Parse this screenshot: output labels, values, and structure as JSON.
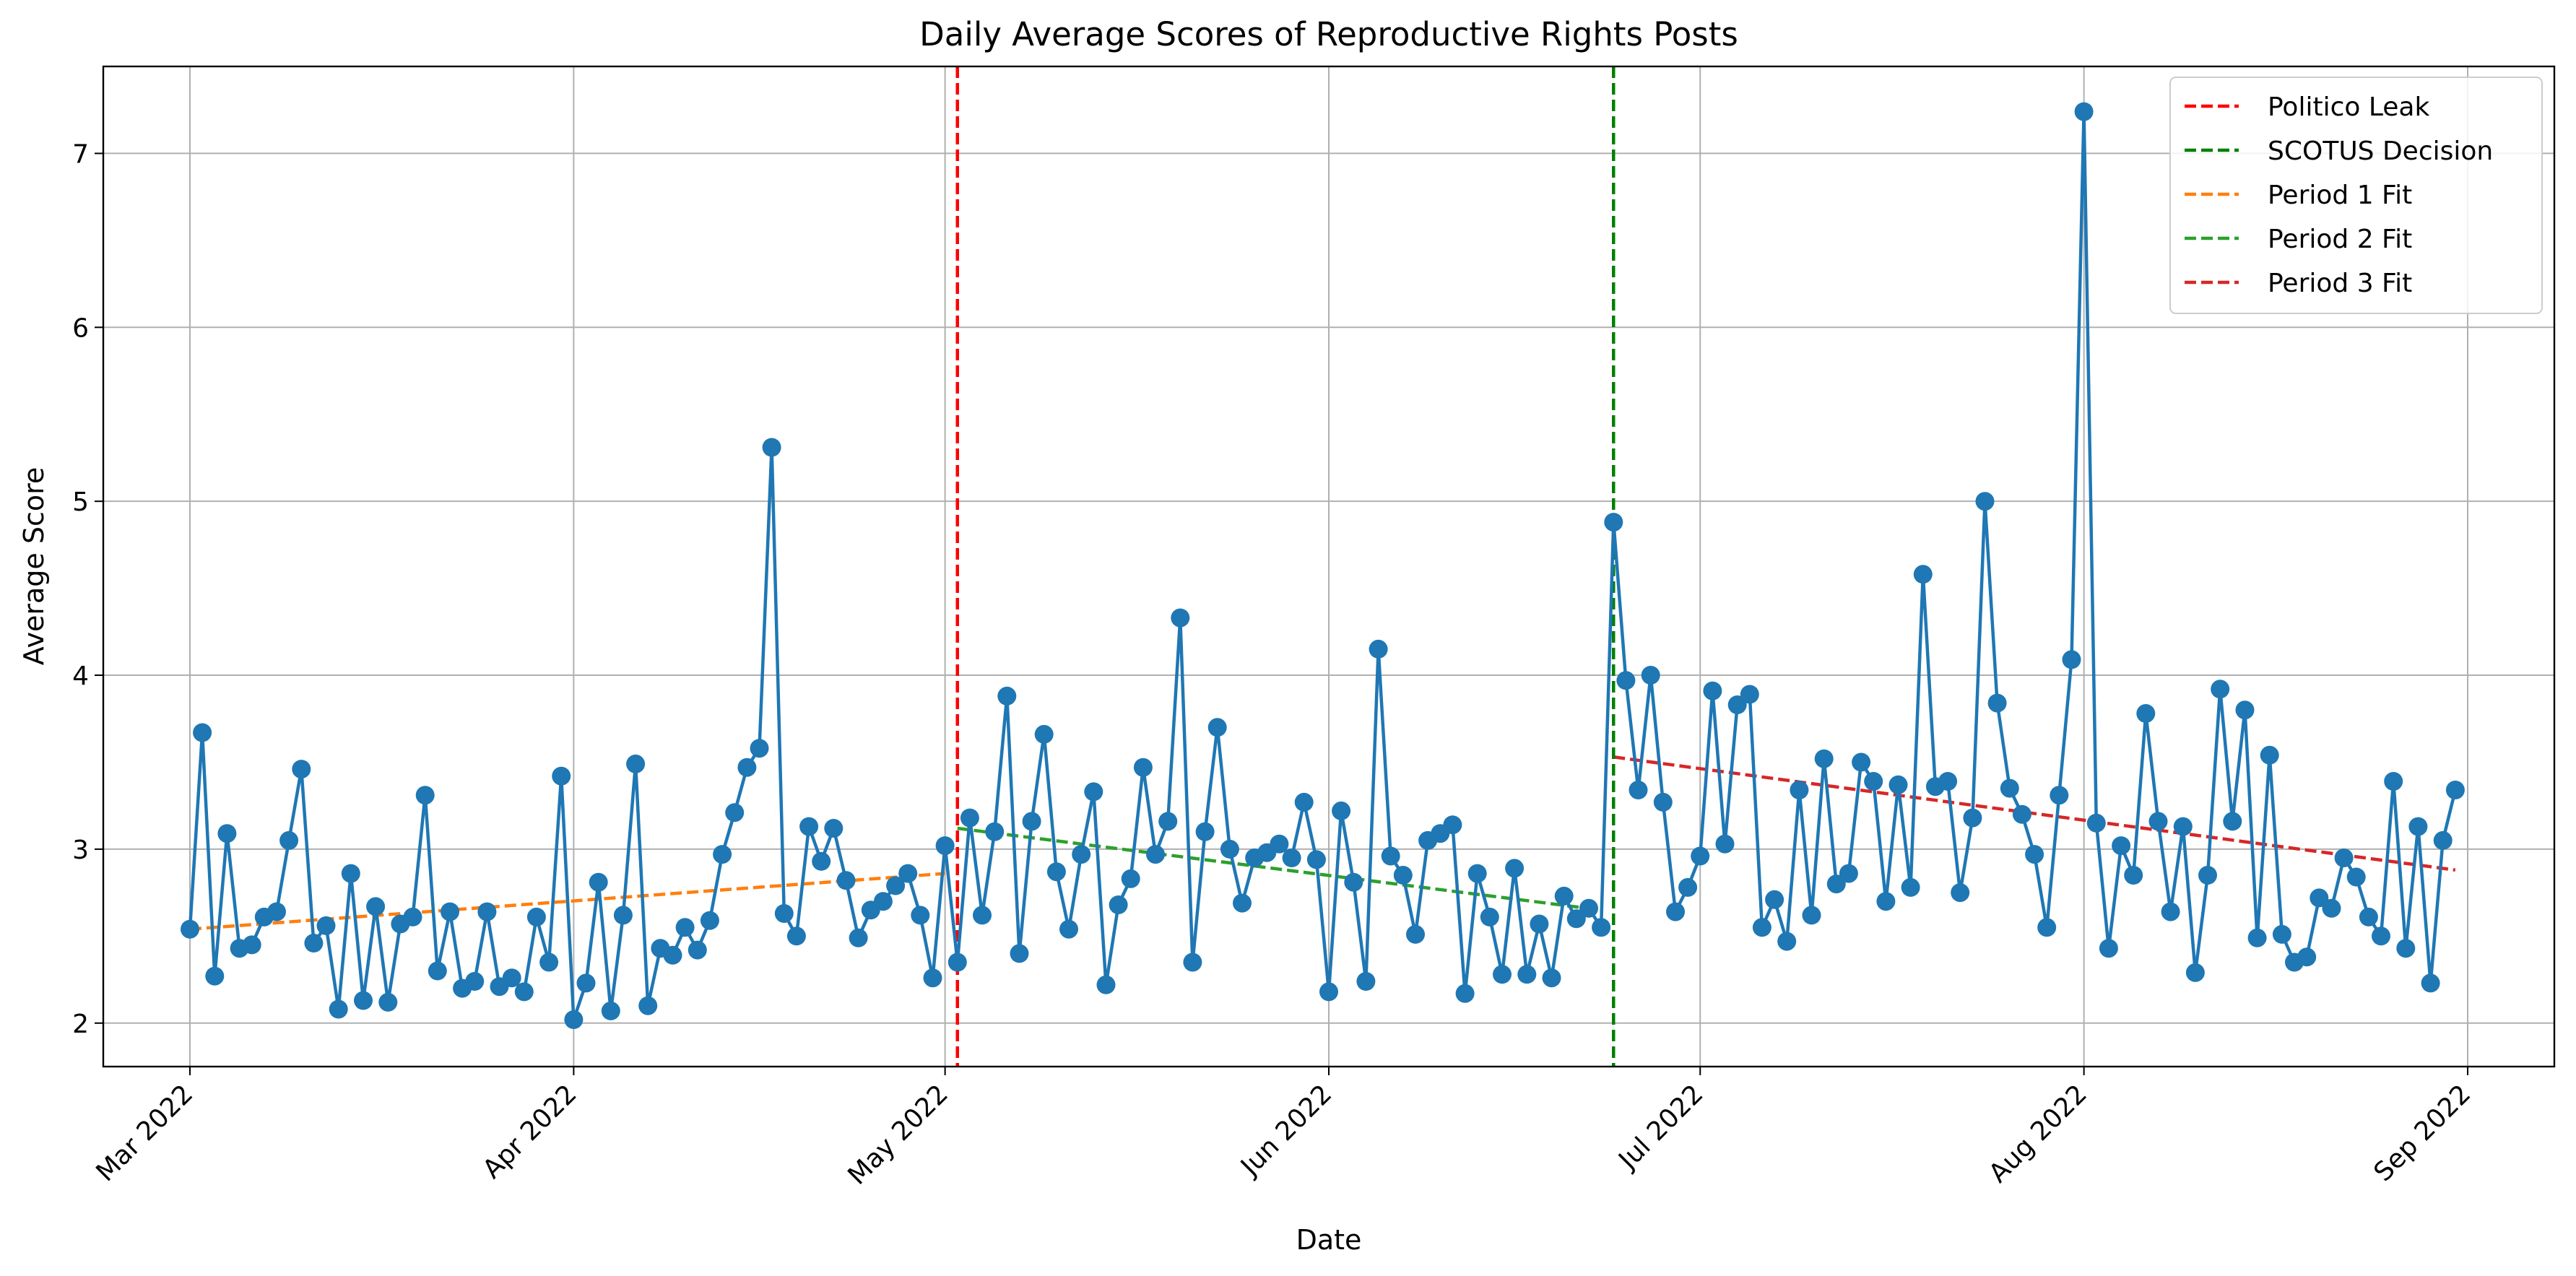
{
  "chart_data": {
    "type": "line",
    "title": "Daily Average Scores of Reproductive Rights Posts",
    "xlabel": "Date",
    "ylabel": "Average Score",
    "xlim": [
      "2022-02-22",
      "2022-09-08"
    ],
    "ylim": [
      1.75,
      7.5
    ],
    "x_ticks": [
      {
        "date": "2022-03-01",
        "label": "Mar 2022"
      },
      {
        "date": "2022-04-01",
        "label": "Apr 2022"
      },
      {
        "date": "2022-05-01",
        "label": "May 2022"
      },
      {
        "date": "2022-06-01",
        "label": "Jun 2022"
      },
      {
        "date": "2022-07-01",
        "label": "Jul 2022"
      },
      {
        "date": "2022-08-01",
        "label": "Aug 2022"
      },
      {
        "date": "2022-09-01",
        "label": "Sep 2022"
      }
    ],
    "y_ticks": [
      2,
      3,
      4,
      5,
      6,
      7
    ],
    "grid": true,
    "legend_position": "top-right",
    "series": [
      {
        "color": "#1f77b4",
        "start_date": "2022-03-01",
        "values": [
          2.54,
          3.67,
          2.27,
          3.09,
          2.43,
          2.45,
          2.61,
          2.64,
          3.05,
          3.46,
          2.46,
          2.56,
          2.08,
          2.86,
          2.13,
          2.67,
          2.12,
          2.57,
          2.61,
          3.31,
          2.3,
          2.64,
          2.2,
          2.24,
          2.64,
          2.21,
          2.26,
          2.18,
          2.61,
          2.35,
          3.42,
          2.02,
          2.23,
          2.81,
          2.07,
          2.62,
          3.49,
          2.1,
          2.43,
          2.39,
          2.55,
          2.42,
          2.59,
          2.97,
          3.21,
          3.47,
          3.58,
          5.31,
          2.63,
          2.5,
          3.13,
          2.93,
          3.12,
          2.82,
          2.49,
          2.65,
          2.7,
          2.79,
          2.86,
          2.62,
          2.26,
          3.02,
          2.35,
          3.18,
          2.62,
          3.1,
          3.88,
          2.4,
          3.16,
          3.66,
          2.87,
          2.54,
          2.97,
          3.33,
          2.22,
          2.68,
          2.83,
          3.47,
          2.97,
          3.16,
          4.33,
          2.35,
          3.1,
          3.7,
          3.0,
          2.69,
          2.95,
          2.98,
          3.03,
          2.95,
          3.27,
          2.94,
          2.18,
          3.22,
          2.81,
          2.24,
          4.15,
          2.96,
          2.85,
          2.51,
          3.05,
          3.09,
          3.14,
          2.17,
          2.86,
          2.61,
          2.28,
          2.89,
          2.28,
          2.57,
          2.26,
          2.73,
          2.6,
          2.66,
          2.55,
          4.88,
          3.97,
          3.34,
          4.0,
          3.27,
          2.64,
          2.78,
          2.96,
          3.91,
          3.03,
          3.83,
          3.89,
          2.55,
          2.71,
          2.47,
          3.34,
          2.62,
          3.52,
          2.8,
          2.86,
          3.5,
          3.39,
          2.7,
          3.37,
          2.78,
          4.58,
          3.36,
          3.39,
          2.75,
          3.18,
          5.0,
          3.84,
          3.35,
          3.2,
          2.97,
          2.55,
          3.31,
          4.09,
          7.24,
          3.15,
          2.43,
          3.02,
          2.85,
          3.78,
          3.16,
          2.64,
          3.13,
          2.29,
          2.85,
          3.92,
          3.16,
          3.8,
          2.49,
          3.54,
          2.51,
          2.35,
          2.38,
          2.72,
          2.66,
          2.95,
          2.84,
          2.61,
          2.5,
          3.39,
          2.43,
          3.13,
          2.23,
          3.05,
          3.34
        ]
      }
    ],
    "vlines": [
      {
        "name": "Politico Leak",
        "date": "2022-05-02",
        "color": "#ff0000"
      },
      {
        "name": "SCOTUS Decision",
        "date": "2022-06-24",
        "color": "#008000"
      }
    ],
    "fits": [
      {
        "name": "Period 1 Fit",
        "start": "2022-03-01",
        "end": "2022-05-01",
        "y_start": 2.54,
        "y_end": 2.86,
        "color": "#ff7f0e"
      },
      {
        "name": "Period 2 Fit",
        "start": "2022-05-02",
        "end": "2022-06-23",
        "y_start": 3.12,
        "y_end": 2.65,
        "color": "#2ca02c"
      },
      {
        "name": "Period 3 Fit",
        "start": "2022-06-24",
        "end": "2022-08-31",
        "y_start": 3.53,
        "y_end": 2.88,
        "color": "#d62728"
      }
    ],
    "legend": [
      "Politico Leak",
      "SCOTUS Decision",
      "Period 1 Fit",
      "Period 2 Fit",
      "Period 3 Fit"
    ]
  }
}
